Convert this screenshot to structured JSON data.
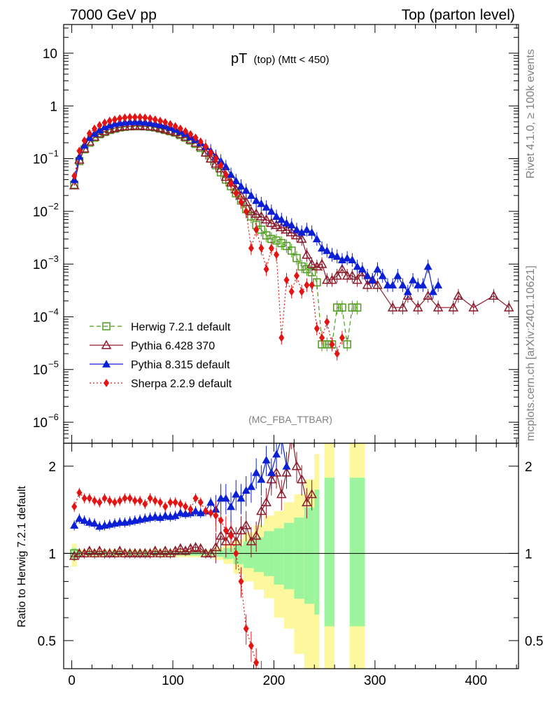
{
  "header": {
    "left": "7000 GeV pp",
    "right": "Top (parton level)"
  },
  "side": {
    "rivet": "Rivet 4.1.0, ≥ 100k events",
    "mcplots": "mcplots.cern.ch [arXiv:2401.10621]"
  },
  "chart_data": {
    "type": "line",
    "title_main": "pT",
    "title_sub": "(top) (Mtt < 450)",
    "analysis_tag": "(MC_FBA_TTBAR)",
    "xlim": [
      -8,
      442
    ],
    "ylim_log": [
      4e-07,
      35
    ],
    "ratio_ylim": [
      0.4,
      2.4
    ],
    "ratio_ylabel": "Ratio to Herwig 7.2.1 default",
    "x_ticks": [
      0,
      100,
      200,
      300,
      400
    ],
    "y_ticks": [
      {
        "v": 10,
        "base": "10",
        "exp": ""
      },
      {
        "v": 1,
        "base": "1",
        "exp": ""
      },
      {
        "v": 0.1,
        "base": "10",
        "exp": "−1"
      },
      {
        "v": 0.01,
        "base": "10",
        "exp": "−2"
      },
      {
        "v": 0.001,
        "base": "10",
        "exp": "−3"
      },
      {
        "v": 0.0001,
        "base": "10",
        "exp": "−4"
      },
      {
        "v": 1e-05,
        "base": "10",
        "exp": "−5"
      },
      {
        "v": 1e-06,
        "base": "10",
        "exp": "−6"
      }
    ],
    "ratio_ticks": [
      {
        "v": 2,
        "label": "2"
      },
      {
        "v": 1,
        "label": "1"
      },
      {
        "v": 0.5,
        "label": "0.5"
      }
    ],
    "legend": [
      {
        "name": "Herwig 7.2.1 default",
        "color": "#4f9a1c",
        "marker": "square-open",
        "dash": "6,4"
      },
      {
        "name": "Pythia 6.428 370",
        "color": "#8b1a2b",
        "marker": "triangle-open",
        "dash": ""
      },
      {
        "name": "Pythia 8.315 default",
        "color": "#0b1fd4",
        "marker": "triangle-filled",
        "dash": ""
      },
      {
        "name": "Sherpa 2.2.9 default",
        "color": "#e31414",
        "marker": "diamond-filled",
        "dash": "2,3"
      }
    ],
    "series": [
      {
        "name": "Herwig 7.2.1 default",
        "x": [
          2.5,
          7.5,
          12.5,
          17.5,
          22.5,
          27.5,
          32.5,
          37.5,
          42.5,
          47.5,
          52.5,
          57.5,
          62.5,
          67.5,
          72.5,
          77.5,
          82.5,
          87.5,
          92.5,
          97.5,
          102.5,
          107.5,
          112.5,
          117.5,
          122.5,
          127.5,
          132.5,
          137.5,
          142.5,
          147.5,
          152.5,
          157.5,
          162.5,
          167.5,
          172.5,
          177.5,
          182.5,
          187.5,
          192.5,
          197.5,
          202.5,
          207.5,
          212.5,
          217.5,
          222.5,
          227.5,
          232.5,
          237.5,
          242.5,
          247.5,
          252.5,
          257.5,
          262.5,
          267.5,
          272.5,
          277.5,
          282.5
        ],
        "y": [
          0.032,
          0.09,
          0.15,
          0.2,
          0.25,
          0.29,
          0.32,
          0.35,
          0.37,
          0.39,
          0.4,
          0.41,
          0.41,
          0.41,
          0.41,
          0.4,
          0.39,
          0.37,
          0.35,
          0.33,
          0.31,
          0.28,
          0.25,
          0.22,
          0.19,
          0.16,
          0.13,
          0.1,
          0.075,
          0.055,
          0.04,
          0.03,
          0.022,
          0.016,
          0.011,
          0.008,
          0.0055,
          0.0045,
          0.0035,
          0.003,
          0.0028,
          0.0025,
          0.0022,
          0.0018,
          0.0013,
          0.0009,
          0.0008,
          0.0007,
          0.00045,
          3e-05,
          3e-05,
          3e-05,
          0.00015,
          0.00015,
          3e-05,
          0.00015,
          0.00015
        ]
      },
      {
        "name": "Pythia 6.428 370",
        "x": [
          2.5,
          7.5,
          12.5,
          17.5,
          22.5,
          27.5,
          32.5,
          37.5,
          42.5,
          47.5,
          52.5,
          57.5,
          62.5,
          67.5,
          72.5,
          77.5,
          82.5,
          87.5,
          92.5,
          97.5,
          102.5,
          107.5,
          112.5,
          117.5,
          122.5,
          127.5,
          132.5,
          137.5,
          142.5,
          147.5,
          152.5,
          157.5,
          162.5,
          167.5,
          172.5,
          177.5,
          182.5,
          187.5,
          192.5,
          197.5,
          202.5,
          207.5,
          212.5,
          217.5,
          222.5,
          227.5,
          232.5,
          237.5,
          242.5,
          247.5,
          252.5,
          257.5,
          262.5,
          267.5,
          272.5,
          277.5,
          282.5,
          287.5,
          292.5,
          297.5,
          302.5,
          317.5,
          327.5,
          332.5,
          342.5,
          352.5,
          362.5,
          377.5,
          382.5,
          397.5,
          417.5,
          432.5
        ],
        "y": [
          0.031,
          0.095,
          0.155,
          0.21,
          0.26,
          0.3,
          0.33,
          0.36,
          0.38,
          0.4,
          0.41,
          0.41,
          0.42,
          0.42,
          0.41,
          0.41,
          0.4,
          0.38,
          0.36,
          0.34,
          0.32,
          0.29,
          0.26,
          0.23,
          0.2,
          0.17,
          0.13,
          0.1,
          0.08,
          0.065,
          0.045,
          0.035,
          0.026,
          0.02,
          0.015,
          0.01,
          0.009,
          0.008,
          0.007,
          0.006,
          0.0055,
          0.005,
          0.0045,
          0.004,
          0.0035,
          0.003,
          0.0015,
          0.001,
          0.0009,
          0.001,
          0.0005,
          0.0005,
          0.0006,
          0.0008,
          0.0006,
          0.0006,
          0.0005,
          0.0007,
          0.0004,
          0.0005,
          0.0004,
          0.00015,
          0.00015,
          0.00025,
          0.00015,
          0.00025,
          0.00015,
          0.00015,
          0.00025,
          0.00015,
          0.00025,
          0.00015
        ]
      },
      {
        "name": "Pythia 8.315 default",
        "x": [
          2.5,
          7.5,
          12.5,
          17.5,
          22.5,
          27.5,
          32.5,
          37.5,
          42.5,
          47.5,
          52.5,
          57.5,
          62.5,
          67.5,
          72.5,
          77.5,
          82.5,
          87.5,
          92.5,
          97.5,
          102.5,
          107.5,
          112.5,
          117.5,
          122.5,
          127.5,
          132.5,
          137.5,
          142.5,
          147.5,
          152.5,
          157.5,
          162.5,
          167.5,
          172.5,
          177.5,
          182.5,
          187.5,
          192.5,
          197.5,
          202.5,
          207.5,
          212.5,
          217.5,
          222.5,
          227.5,
          232.5,
          237.5,
          242.5,
          247.5,
          252.5,
          257.5,
          262.5,
          267.5,
          272.5,
          277.5,
          282.5,
          287.5,
          292.5,
          297.5,
          302.5,
          307.5,
          312.5,
          317.5,
          322.5,
          327.5,
          332.5,
          337.5,
          342.5,
          347.5,
          352.5,
          357.5,
          362.5
        ],
        "y": [
          0.04,
          0.11,
          0.18,
          0.25,
          0.3,
          0.35,
          0.4,
          0.43,
          0.46,
          0.48,
          0.49,
          0.5,
          0.5,
          0.5,
          0.49,
          0.48,
          0.46,
          0.44,
          0.42,
          0.39,
          0.36,
          0.33,
          0.3,
          0.26,
          0.23,
          0.2,
          0.17,
          0.14,
          0.11,
          0.09,
          0.07,
          0.05,
          0.038,
          0.03,
          0.025,
          0.02,
          0.016,
          0.014,
          0.012,
          0.01,
          0.008,
          0.007,
          0.006,
          0.0055,
          0.0045,
          0.004,
          0.0045,
          0.004,
          0.003,
          0.002,
          0.0018,
          0.0015,
          0.0014,
          0.0012,
          0.0013,
          0.0012,
          0.0009,
          0.0008,
          0.0006,
          0.0005,
          0.0008,
          0.0006,
          0.0004,
          0.0004,
          0.0006,
          0.0004,
          0.0003,
          0.0005,
          0.0004,
          0.0004,
          0.0009,
          0.0003,
          0.0004
        ]
      },
      {
        "name": "Sherpa 2.2.9 default",
        "x": [
          2.5,
          7.5,
          12.5,
          17.5,
          22.5,
          27.5,
          32.5,
          37.5,
          42.5,
          47.5,
          52.5,
          57.5,
          62.5,
          67.5,
          72.5,
          77.5,
          82.5,
          87.5,
          92.5,
          97.5,
          102.5,
          107.5,
          112.5,
          117.5,
          122.5,
          127.5,
          132.5,
          137.5,
          142.5,
          147.5,
          152.5,
          157.5,
          162.5,
          167.5,
          172.5,
          177.5,
          182.5,
          187.5,
          192.5,
          197.5,
          202.5,
          207.5,
          212.5,
          217.5,
          222.5,
          227.5,
          232.5,
          237.5,
          242.5,
          247.5,
          252.5,
          257.5,
          262.5,
          267.5
        ],
        "y": [
          0.047,
          0.14,
          0.22,
          0.3,
          0.37,
          0.43,
          0.48,
          0.52,
          0.55,
          0.58,
          0.6,
          0.61,
          0.61,
          0.61,
          0.6,
          0.58,
          0.55,
          0.52,
          0.49,
          0.45,
          0.41,
          0.37,
          0.33,
          0.29,
          0.25,
          0.21,
          0.17,
          0.13,
          0.1,
          0.075,
          0.05,
          0.033,
          0.022,
          0.015,
          0.01,
          0.002,
          0.0045,
          0.002,
          0.0008,
          0.002,
          0.0015,
          4e-05,
          0.0005,
          0.0003,
          0.0006,
          0.0003,
          0.0004,
          0.0004,
          6e-05,
          4e-05,
          8e-05,
          3e-05,
          2e-05,
          4e-05
        ]
      }
    ],
    "ratio_series": [
      {
        "name": "Pythia 6.428 370",
        "x": [
          2.5,
          7.5,
          12.5,
          17.5,
          22.5,
          27.5,
          32.5,
          37.5,
          42.5,
          47.5,
          52.5,
          57.5,
          62.5,
          67.5,
          72.5,
          77.5,
          82.5,
          87.5,
          92.5,
          97.5,
          102.5,
          107.5,
          112.5,
          117.5,
          122.5,
          127.5,
          132.5,
          137.5,
          142.5,
          147.5,
          152.5,
          157.5,
          162.5,
          167.5,
          172.5,
          177.5,
          182.5,
          187.5,
          192.5,
          197.5,
          202.5,
          207.5,
          212.5,
          217.5,
          222.5,
          227.5,
          232.5,
          237.5
        ],
        "y": [
          0.98,
          1.0,
          1.0,
          1.02,
          1.0,
          1.02,
          1.0,
          1.0,
          1.0,
          1.02,
          1.0,
          1.0,
          1.0,
          1.0,
          1.0,
          1.0,
          1.02,
          1.0,
          1.02,
          1.0,
          1.02,
          1.04,
          1.02,
          1.04,
          1.05,
          1.04,
          1.0,
          1.0,
          1.05,
          1.15,
          1.1,
          1.2,
          1.1,
          1.2,
          1.25,
          1.1,
          1.15,
          1.4,
          1.5,
          1.8,
          1.9,
          1.6,
          1.9,
          2.6,
          2.0,
          1.8,
          1.5,
          1.6
        ]
      },
      {
        "name": "Pythia 8.315 default",
        "x": [
          2.5,
          7.5,
          12.5,
          17.5,
          22.5,
          27.5,
          32.5,
          37.5,
          42.5,
          47.5,
          52.5,
          57.5,
          62.5,
          67.5,
          72.5,
          77.5,
          82.5,
          87.5,
          92.5,
          97.5,
          102.5,
          107.5,
          112.5,
          117.5,
          122.5,
          127.5,
          132.5,
          137.5,
          142.5,
          147.5,
          152.5,
          157.5,
          162.5,
          167.5,
          172.5,
          177.5,
          182.5,
          187.5,
          192.5,
          197.5,
          202.5,
          207.5,
          212.5
        ],
        "y": [
          1.25,
          1.32,
          1.3,
          1.28,
          1.27,
          1.24,
          1.25,
          1.26,
          1.27,
          1.28,
          1.28,
          1.29,
          1.3,
          1.31,
          1.32,
          1.33,
          1.34,
          1.33,
          1.35,
          1.34,
          1.35,
          1.38,
          1.37,
          1.38,
          1.4,
          1.38,
          1.4,
          1.5,
          1.42,
          1.55,
          1.55,
          1.45,
          1.6,
          1.55,
          1.65,
          1.7,
          1.9,
          1.8,
          2.1,
          1.9,
          2.2,
          2.5,
          2.0
        ]
      },
      {
        "name": "Sherpa 2.2.9 default",
        "x": [
          2.5,
          7.5,
          12.5,
          17.5,
          22.5,
          27.5,
          32.5,
          37.5,
          42.5,
          47.5,
          52.5,
          57.5,
          62.5,
          67.5,
          72.5,
          77.5,
          82.5,
          87.5,
          92.5,
          97.5,
          102.5,
          107.5,
          112.5,
          117.5,
          122.5,
          127.5,
          132.5,
          137.5,
          142.5,
          147.5,
          152.5,
          157.5,
          162.5,
          167.5,
          172.5,
          177.5,
          182.5,
          187.5
        ],
        "y": [
          1.45,
          1.62,
          1.55,
          1.55,
          1.52,
          1.5,
          1.55,
          1.52,
          1.5,
          1.52,
          1.55,
          1.55,
          1.52,
          1.52,
          1.48,
          1.55,
          1.52,
          1.5,
          1.45,
          1.5,
          1.5,
          1.48,
          1.45,
          1.42,
          1.55,
          1.5,
          1.4,
          1.38,
          1.35,
          1.3,
          1.2,
          1.15,
          1.0,
          0.8,
          0.55,
          0.48,
          0.42,
          0.38
        ]
      }
    ],
    "ratio_bands": [
      {
        "x0": 0,
        "x1": 5,
        "lo": 0.9,
        "hi": 1.08
      },
      {
        "x0": 5,
        "x1": 140,
        "lo": 0.97,
        "hi": 1.03
      },
      {
        "x0": 140,
        "x1": 150,
        "lo": 0.95,
        "hi": 1.05
      },
      {
        "x0": 150,
        "x1": 160,
        "lo": 0.92,
        "hi": 1.08
      },
      {
        "x0": 160,
        "x1": 170,
        "lo": 0.85,
        "hi": 1.12
      },
      {
        "x0": 170,
        "x1": 180,
        "lo": 0.8,
        "hi": 1.18
      },
      {
        "x0": 180,
        "x1": 190,
        "lo": 0.75,
        "hi": 1.25
      },
      {
        "x0": 190,
        "x1": 200,
        "lo": 0.7,
        "hi": 1.35
      },
      {
        "x0": 200,
        "x1": 210,
        "lo": 0.6,
        "hi": 1.4
      },
      {
        "x0": 210,
        "x1": 220,
        "lo": 0.55,
        "hi": 1.5
      },
      {
        "x0": 220,
        "x1": 230,
        "lo": 0.45,
        "hi": 1.6
      },
      {
        "x0": 230,
        "x1": 240,
        "lo": 0.4,
        "hi": 1.8
      },
      {
        "x0": 240,
        "x1": 245,
        "lo": 0.3,
        "hi": 2.2
      },
      {
        "x0": 250,
        "x1": 260,
        "lo": 0.2,
        "hi": 2.5
      },
      {
        "x0": 275,
        "x1": 290,
        "lo": 0.2,
        "hi": 2.5
      }
    ]
  }
}
